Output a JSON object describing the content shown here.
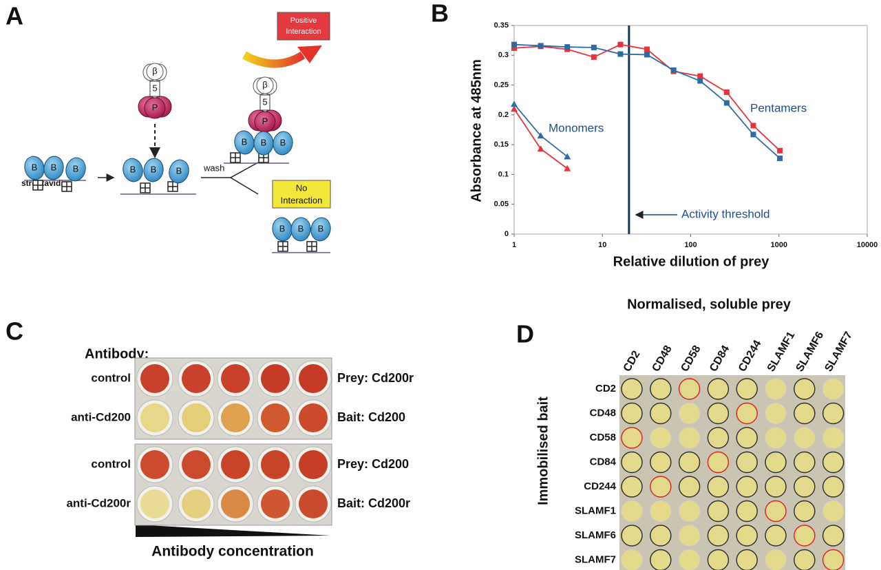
{
  "panel_a": {
    "letter": "A",
    "positive_label": [
      "Positive",
      "Interaction"
    ],
    "negative_label": [
      "No",
      "Interaction"
    ],
    "wash": "wash",
    "streptavidin": "streptavidin",
    "bead_labels": {
      "bait": "B",
      "prey": "P",
      "beta": "β",
      "linker": "5"
    }
  },
  "chart_data": {
    "type": "line",
    "letter": "B",
    "xlabel": "Relative dilution of prey",
    "ylabel": "Absorbance at 485nm",
    "xscale": "log",
    "xlim": [
      1,
      10000
    ],
    "xticks": [
      1,
      10,
      100,
      1000,
      10000
    ],
    "ylim": [
      0,
      0.35
    ],
    "yticks": [
      0,
      0.05,
      0.1,
      0.15,
      0.2,
      0.25,
      0.3,
      0.35
    ],
    "threshold_x": 20,
    "annotations": {
      "monomers": "Monomers",
      "pentamers": "Pentamers",
      "threshold": "Activity threshold"
    },
    "series": [
      {
        "color": "#e8333b",
        "marker": "square",
        "x": [
          1,
          2,
          4,
          8,
          16,
          32,
          64,
          128,
          256,
          512,
          1024
        ],
        "values": [
          0.312,
          0.315,
          0.31,
          0.297,
          0.318,
          0.31,
          0.273,
          0.265,
          0.238,
          0.182,
          0.14
        ]
      },
      {
        "color": "#2f6aa8",
        "marker": "square",
        "x": [
          1,
          2,
          4,
          8,
          16,
          32,
          64,
          128,
          256,
          512,
          1024
        ],
        "values": [
          0.318,
          0.316,
          0.314,
          0.313,
          0.302,
          0.301,
          0.275,
          0.257,
          0.22,
          0.167,
          0.127
        ]
      },
      {
        "color": "#e8333b",
        "marker": "triangle",
        "x": [
          1,
          2,
          4
        ],
        "values": [
          0.21,
          0.143,
          0.11
        ]
      },
      {
        "color": "#2f6aa8",
        "marker": "triangle",
        "x": [
          1,
          2,
          4
        ],
        "values": [
          0.218,
          0.165,
          0.13
        ]
      }
    ]
  },
  "panel_c": {
    "letter": "C",
    "antibody": "Antibody:",
    "plates": [
      {
        "rows": [
          {
            "left": "control",
            "right": "Prey: Cd200r",
            "wells": [
              "#c9402c",
              "#c9402c",
              "#c9402c",
              "#c63a28",
              "#c63a28"
            ]
          },
          {
            "left": "anti-Cd200",
            "right": "Bait: Cd200",
            "wells": [
              "#e6d88a",
              "#e3cf7a",
              "#dfa050",
              "#d05a30",
              "#cc4a2c"
            ]
          }
        ]
      },
      {
        "rows": [
          {
            "left": "control",
            "right": "Prey: Cd200",
            "wells": [
              "#cc4a2e",
              "#cc4a2e",
              "#c94329",
              "#c94329",
              "#c63e28"
            ]
          },
          {
            "left": "anti-Cd200r",
            "right": "Bait: Cd200r",
            "wells": [
              "#e9dc96",
              "#e4cf80",
              "#d98a46",
              "#cf5630",
              "#c94a2c"
            ]
          }
        ]
      }
    ],
    "concentration": "Antibody concentration"
  },
  "panel_d": {
    "letter": "D",
    "title": "Normalised, soluble prey",
    "row_title": "Immobilised bait",
    "columns": [
      "CD2",
      "CD48",
      "CD58",
      "CD84",
      "CD244",
      "SLAMF1",
      "SLAMF6",
      "SLAMF7"
    ],
    "rows": [
      "CD2",
      "CD48",
      "CD58",
      "CD84",
      "CD244",
      "SLAMF1",
      "SLAMF6",
      "SLAMF7"
    ],
    "rings": [
      [
        "black",
        "black",
        "red",
        "black",
        "black",
        null,
        "black",
        null
      ],
      [
        "black",
        "black",
        null,
        "black",
        "red",
        null,
        "black",
        "black"
      ],
      [
        "red",
        null,
        null,
        "black",
        "black",
        null,
        null,
        null
      ],
      [
        "black",
        "black",
        "black",
        "red",
        "black",
        "black",
        "black",
        "black"
      ],
      [
        "black",
        "red",
        "black",
        "black",
        "black",
        "black",
        "black",
        "black"
      ],
      [
        null,
        null,
        null,
        "black",
        "black",
        "red",
        "black",
        null
      ],
      [
        "black",
        "black",
        null,
        "black",
        "black",
        "black",
        "red",
        "black"
      ],
      [
        null,
        "black",
        null,
        "black",
        "black",
        null,
        "black",
        "red"
      ]
    ]
  }
}
